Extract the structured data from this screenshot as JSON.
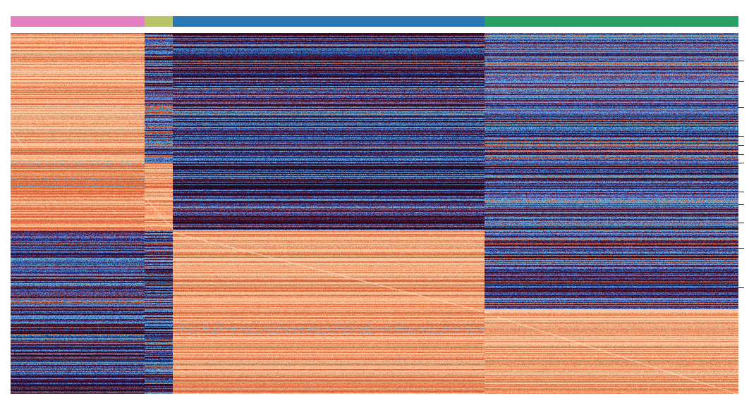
{
  "chart_data": {
    "type": "heatmap",
    "title": "",
    "xlabel": "",
    "ylabel": "",
    "colors": {
      "low": "#1a0d1e",
      "mid_low": "#3b5fb8",
      "mid": "#6fb8d6",
      "mid_high": "#d9643f",
      "high": "#f6b48c"
    },
    "column_groups": [
      {
        "color": "#e57fc2",
        "columns": 190
      },
      {
        "color": "#b9c368",
        "columns": 40
      },
      {
        "color": "#2679b6",
        "columns": 442
      },
      {
        "color": "#27a163",
        "columns": 360
      }
    ],
    "gene_blocks": [
      {
        "rows": 75,
        "group_expression": [
          0.92,
          0.3,
          0.22,
          0.35
        ]
      },
      {
        "rows": 110,
        "group_expression": [
          0.88,
          0.35,
          0.25,
          0.3
        ]
      },
      {
        "rows": 95,
        "group_expression": [
          0.8,
          0.9,
          0.22,
          0.32
        ]
      },
      {
        "rows": 112,
        "group_expression": [
          0.28,
          0.3,
          0.88,
          0.3
        ]
      },
      {
        "rows": 120,
        "group_expression": [
          0.25,
          0.28,
          0.85,
          0.9
        ]
      }
    ],
    "highlighted_rows_fraction": [
      0.076,
      0.133,
      0.205,
      0.285,
      0.31,
      0.335,
      0.36,
      0.44,
      0.475,
      0.525,
      0.595,
      0.705
    ]
  }
}
